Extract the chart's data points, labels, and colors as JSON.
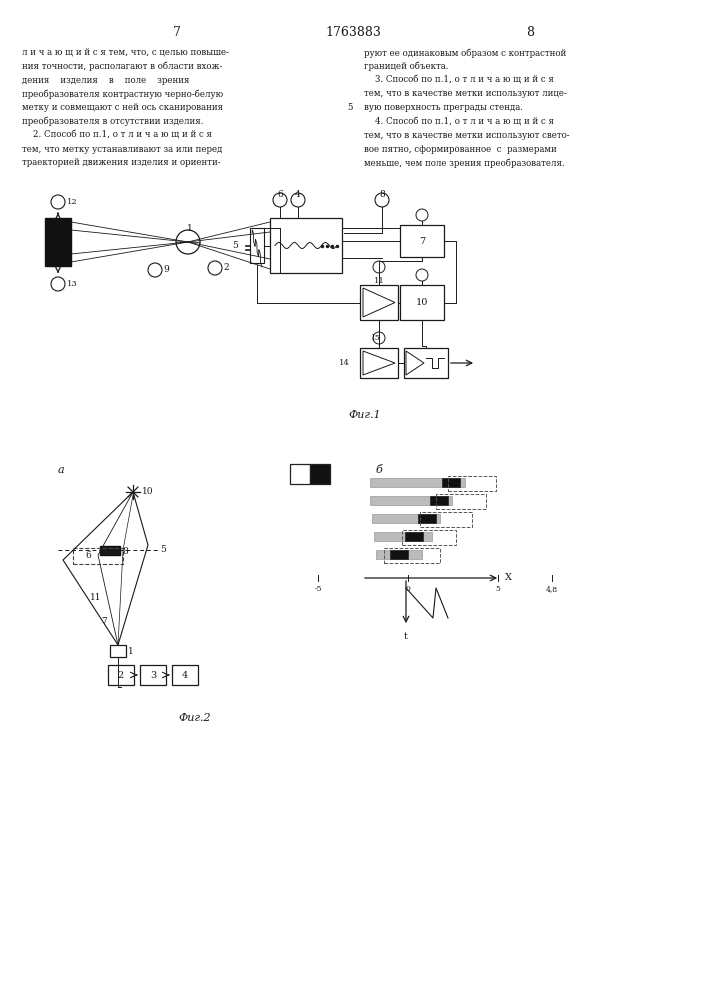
{
  "page_width": 7.07,
  "page_height": 10.0,
  "bg_color": "#ffffff",
  "text_color": "#1a1a1a",
  "page_num_left": "7",
  "page_num_center": "1763883",
  "page_num_right": "8",
  "fig1_caption": "Фиг.1",
  "fig2_caption": "Фиг.2",
  "fig_a_label": "a",
  "fig_b_label": "б",
  "left_col_lines": [
    "л и ч а ю щ и й с я тем, что, с целью повыше-",
    "ния точности, располагают в области вхож-",
    "дения    изделия    в    поле    зрения",
    "преобразователя контрастную черно-белую",
    "метку и совмещают с ней ось сканирования",
    "преобразователя в отсутствии изделия.",
    "    2. Способ по п.1, о т л и ч а ю щ и й с я",
    "тем, что метку устанавливают за или перед",
    "траекторией движения изделия и ориенти-"
  ],
  "right_col_lines": [
    "руют ее одинаковым образом с контрастной",
    "границей объекта.",
    "    3. Способ по п.1, о т л и ч а ю щ и й с я",
    "тем, что в качестве метки используют лице-",
    "вую поверхность преграды стенда.",
    "    4. Способ по п.1, о т л и ч а ю щ и й с я",
    "тем, что в качестве метки используют свето-",
    "вое пятно, сформированное  с  размерами",
    "меньше, чем поле зрения преобразователя."
  ]
}
